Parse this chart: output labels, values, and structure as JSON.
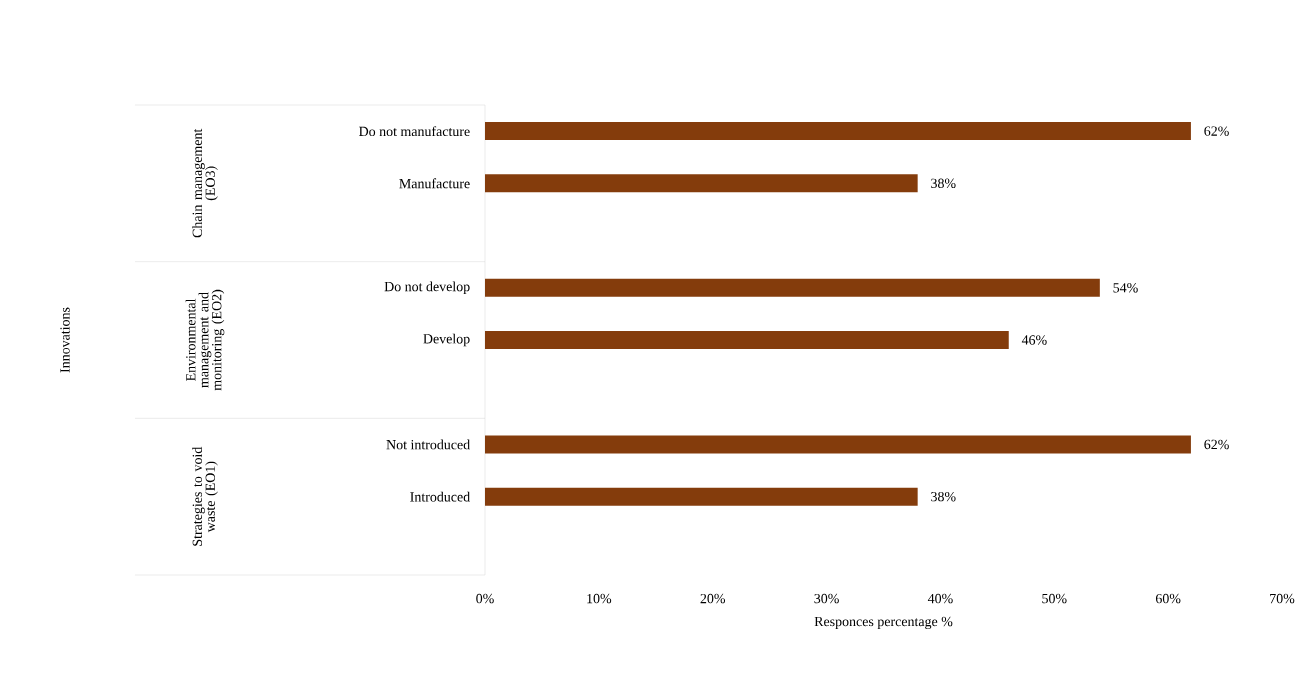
{
  "chart_data": {
    "type": "bar",
    "orientation": "horizontal",
    "xlabel": "Responces percentage %",
    "categories": [
      "Do not manufacture",
      "Manufacture",
      null,
      "Do not develop",
      "Develop",
      null,
      "Not introduced",
      "Introduced",
      null
    ],
    "values": [
      62,
      38,
      null,
      54,
      46,
      null,
      62,
      38,
      null
    ],
    "value_labels": [
      "62%",
      "38%",
      null,
      "54%",
      "46%",
      null,
      "62%",
      "38%",
      null
    ],
    "color": "#843c0c",
    "xlim": [
      0,
      70
    ],
    "xticks": [
      {
        "value": 0,
        "label": "0%"
      },
      {
        "value": 10,
        "label": "10%"
      },
      {
        "value": 20,
        "label": "20%"
      },
      {
        "value": 30,
        "label": "30%"
      },
      {
        "value": 40,
        "label": "40%"
      },
      {
        "value": 50,
        "label": "50%"
      },
      {
        "value": 60,
        "label": "60%"
      },
      {
        "value": 70,
        "label": "70%"
      }
    ],
    "annotations": [
      "Chain management (EO3)",
      "Environmental management and monitoring (EO2)",
      "Strategies to void waste (EO1)",
      "Innovations"
    ]
  }
}
